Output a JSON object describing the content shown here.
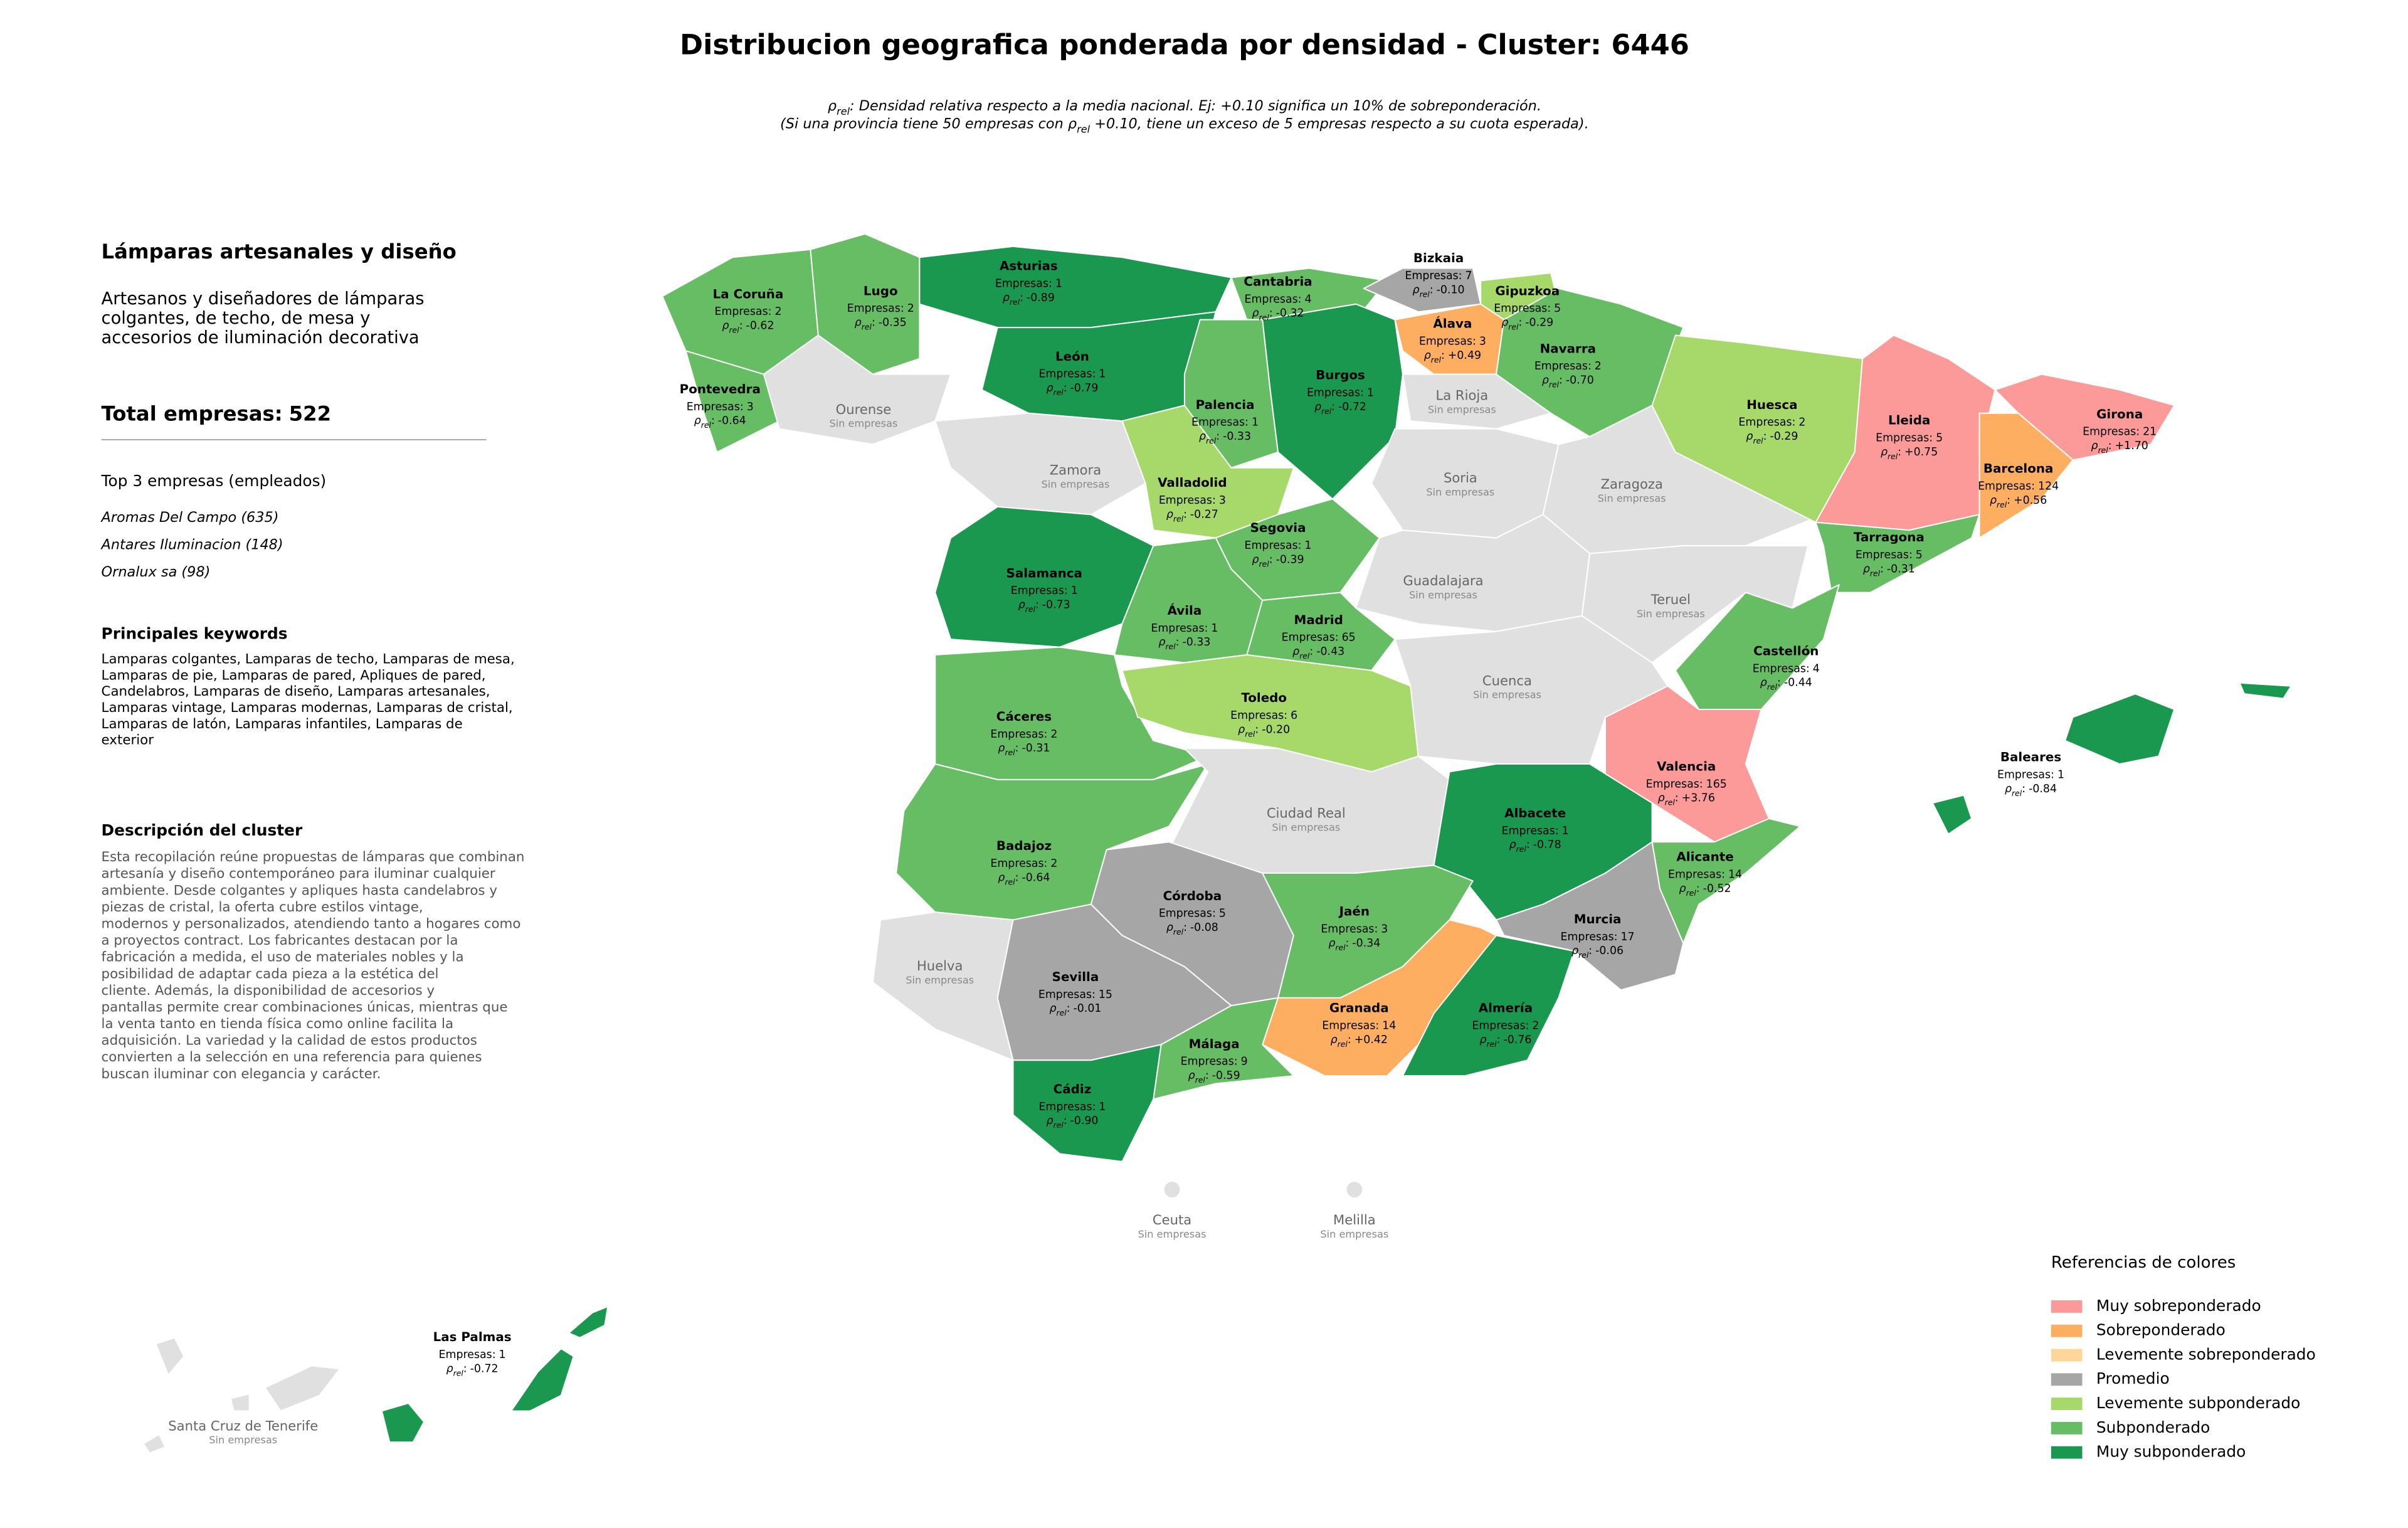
{
  "title": "Distribucion geografica ponderada por densidad - Cluster: 6446",
  "subtitle": [
    [
      {
        "text": "ρ"
      },
      {
        "text": "rel",
        "sub": true
      },
      {
        "text": ": Densidad relativa respecto a la media nacional. Ej: +0.10 significa un 10% de sobreponderación."
      }
    ],
    [
      {
        "text": "(Si una provincia tiene 50 empresas con "
      },
      {
        "text": "ρ"
      },
      {
        "text": "rel",
        "sub": true
      },
      {
        "text": " +0.10, tiene un exceso de 5 empresas respecto a su cuota esperada)."
      }
    ]
  ],
  "sidebar": {
    "cluster_name": "Lámparas artesanales y diseño",
    "cluster_summary": [
      "Artesanos y diseñadores de lámparas",
      "colgantes, de techo, de mesa y",
      "accesorios de iluminación decorativa"
    ],
    "total_label": "Total empresas:",
    "total": 522,
    "top_title": "Top 3 empresas (empleados)",
    "top_companies": [
      "Aromas Del Campo (635)",
      "Antares Iluminacion (148)",
      "Ornalux sa (98)"
    ],
    "keywords_title": "Principales keywords",
    "keywords_lines": [
      "Lamparas colgantes, Lamparas de techo, Lamparas de mesa,",
      "Lamparas de pie, Lamparas de pared, Apliques de pared,",
      "Candelabros, Lamparas de diseño, Lamparas artesanales,",
      "Lamparas vintage, Lamparas modernas, Lamparas de cristal,",
      "Lamparas de latón, Lamparas infantiles, Lamparas de",
      "exterior"
    ],
    "description_title": "Descripción del cluster",
    "description_lines": [
      "Esta recopilación reúne propuestas de lámparas que combinan",
      "artesanía y diseño contemporáneo para iluminar cualquier",
      "ambiente. Desde colgantes y apliques hasta candelabros y",
      "piezas de cristal, la oferta cubre estilos vintage,",
      "modernos y personalizados, atendiendo tanto a hogares como",
      "a proyectos contract. Los fabricantes destacan por la",
      "fabricación a medida, el uso de materiales nobles y la",
      "posibilidad de adaptar cada pieza a la estética del",
      "cliente. Además, la disponibilidad de accesorios y",
      "pantallas permite crear combinaciones únicas, mientras que",
      "la venta tanto en tienda física como online facilita la",
      "adquisición. La variedad y la calidad de estos productos",
      "convierten a la selección en una referencia para quienes",
      "buscan iluminar con elegancia y carácter."
    ]
  },
  "labels": {
    "empresas": "Empresas:",
    "rho": "ρ",
    "rho_sub": "rel",
    "rho_sep": ":",
    "no_data": "Sin empresas"
  },
  "no_data_color": "#e0e0e0",
  "legend": {
    "title": "Referencias de colores",
    "items": [
      {
        "name": "Muy sobreponderado",
        "color": "#fb9a99"
      },
      {
        "name": "Sobreponderado",
        "color": "#fdae61"
      },
      {
        "name": "Levemente sobreponderado",
        "color": "#fed699"
      },
      {
        "name": "Promedio",
        "color": "#a6a6a6"
      },
      {
        "name": "Levemente subponderado",
        "color": "#a6d96a"
      },
      {
        "name": "Subponderado",
        "color": "#66bd63"
      },
      {
        "name": "Muy subponderado",
        "color": "#1a9850"
      }
    ]
  },
  "provinces": [
    {
      "name": "La Coruña",
      "empresas": 2,
      "rho": -0.62,
      "category": "Subponderado"
    },
    {
      "name": "Lugo",
      "empresas": 2,
      "rho": -0.35,
      "category": "Subponderado"
    },
    {
      "name": "Asturias",
      "empresas": 1,
      "rho": -0.89,
      "category": "Muy subponderado"
    },
    {
      "name": "Cantabria",
      "empresas": 4,
      "rho": -0.32,
      "category": "Subponderado"
    },
    {
      "name": "Bizkaia",
      "empresas": 7,
      "rho": {
        "value": -0.1,
        "label": "-0.10"
      },
      "category": "Promedio"
    },
    {
      "name": "Gipuzkoa",
      "empresas": 5,
      "rho": -0.29,
      "category": "Levemente subponderado"
    },
    {
      "name": "Álava",
      "empresas": 3,
      "rho": {
        "value": 0.49,
        "label": "+0.49"
      },
      "category": "Sobreponderado"
    },
    {
      "name": "Navarra",
      "empresas": 2,
      "rho": {
        "value": -0.7,
        "label": "-0.70"
      },
      "category": "Subponderado"
    },
    {
      "name": "León",
      "empresas": 1,
      "rho": -0.79,
      "category": "Muy subponderado"
    },
    {
      "name": "Palencia",
      "empresas": 1,
      "rho": -0.33,
      "category": "Subponderado"
    },
    {
      "name": "Burgos",
      "empresas": 1,
      "rho": -0.72,
      "category": "Muy subponderado"
    },
    {
      "name": "Pontevedra",
      "empresas": 3,
      "rho": -0.64,
      "category": "Subponderado"
    },
    {
      "name": "Ourense"
    },
    {
      "name": "Zamora"
    },
    {
      "name": "Valladolid",
      "empresas": 3,
      "rho": -0.27,
      "category": "Levemente subponderado"
    },
    {
      "name": "La Rioja"
    },
    {
      "name": "Soria"
    },
    {
      "name": "Zaragoza"
    },
    {
      "name": "Huesca",
      "empresas": 2,
      "rho": -0.29,
      "category": "Levemente subponderado"
    },
    {
      "name": "Lleida",
      "empresas": 5,
      "rho": {
        "value": 0.75,
        "label": "+0.75"
      },
      "category": "Muy sobreponderado"
    },
    {
      "name": "Girona",
      "empresas": 21,
      "rho": {
        "value": 1.7,
        "label": "+1.70"
      },
      "category": "Muy sobreponderado"
    },
    {
      "name": "Barcelona",
      "empresas": 124,
      "rho": {
        "value": 0.56,
        "label": "+0.56"
      },
      "category": "Sobreponderado"
    },
    {
      "name": "Tarragona",
      "empresas": 5,
      "rho": -0.31,
      "category": "Subponderado"
    },
    {
      "name": "Segovia",
      "empresas": 1,
      "rho": -0.39,
      "category": "Subponderado"
    },
    {
      "name": "Salamanca",
      "empresas": 1,
      "rho": -0.73,
      "category": "Muy subponderado"
    },
    {
      "name": "Ávila",
      "empresas": 1,
      "rho": -0.33,
      "category": "Subponderado"
    },
    {
      "name": "Guadalajara"
    },
    {
      "name": "Madrid",
      "empresas": 65,
      "rho": -0.43,
      "category": "Subponderado"
    },
    {
      "name": "Teruel"
    },
    {
      "name": "Cáceres",
      "empresas": 2,
      "rho": -0.31,
      "category": "Subponderado"
    },
    {
      "name": "Toledo",
      "empresas": 6,
      "rho": {
        "value": -0.2,
        "label": "-0.20"
      },
      "category": "Levemente subponderado"
    },
    {
      "name": "Cuenca"
    },
    {
      "name": "Castellón",
      "empresas": 4,
      "rho": -0.44,
      "category": "Subponderado"
    },
    {
      "name": "Valencia",
      "empresas": 165,
      "rho": {
        "value": 3.76,
        "label": "+3.76"
      },
      "category": "Muy sobreponderado"
    },
    {
      "name": "Baleares",
      "empresas": 1,
      "rho": -0.84,
      "category": "Muy subponderado"
    },
    {
      "name": "Badajoz",
      "empresas": 2,
      "rho": -0.64,
      "category": "Subponderado"
    },
    {
      "name": "Ciudad Real"
    },
    {
      "name": "Albacete",
      "empresas": 1,
      "rho": -0.78,
      "category": "Muy subponderado"
    },
    {
      "name": "Alicante",
      "empresas": 14,
      "rho": -0.52,
      "category": "Subponderado"
    },
    {
      "name": "Córdoba",
      "empresas": 5,
      "rho": -0.08,
      "category": "Promedio"
    },
    {
      "name": "Jaén",
      "empresas": 3,
      "rho": -0.34,
      "category": "Subponderado"
    },
    {
      "name": "Murcia",
      "empresas": 17,
      "rho": -0.06,
      "category": "Promedio"
    },
    {
      "name": "Huelva"
    },
    {
      "name": "Sevilla",
      "empresas": 15,
      "rho": -0.01,
      "category": "Promedio"
    },
    {
      "name": "Granada",
      "empresas": 14,
      "rho": {
        "value": 0.42,
        "label": "+0.42"
      },
      "category": "Sobreponderado"
    },
    {
      "name": "Almería",
      "empresas": 2,
      "rho": -0.76,
      "category": "Muy subponderado"
    },
    {
      "name": "Málaga",
      "empresas": 9,
      "rho": -0.59,
      "category": "Subponderado"
    },
    {
      "name": "Cádiz",
      "empresas": 1,
      "rho": {
        "value": -0.9,
        "label": "-0.90"
      },
      "category": "Muy subponderado"
    },
    {
      "name": "Ceuta"
    },
    {
      "name": "Melilla"
    },
    {
      "name": "Las Palmas",
      "empresas": 1,
      "rho": -0.72,
      "category": "Muy subponderado"
    },
    {
      "name": "Santa Cruz de Tenerife"
    }
  ]
}
